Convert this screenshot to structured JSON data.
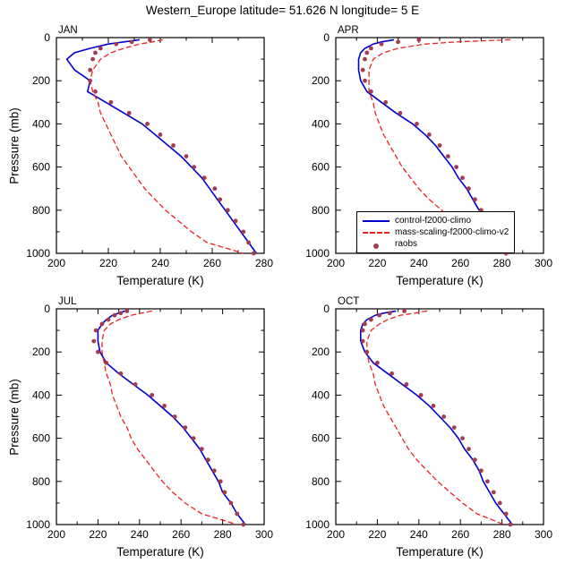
{
  "title": "Western_Europe  latitude= 51.626 N longitude= 5 E",
  "legend": {
    "entries": [
      {
        "label": "control-f2000-climo",
        "style": "solid",
        "color": "#0000cd"
      },
      {
        "label": "mass-scaling-f2000-climo-v2",
        "style": "dashed",
        "color": "#ee2020"
      },
      {
        "label": "raobs",
        "style": "dot",
        "color": "#a63a50"
      }
    ]
  },
  "chart_data": [
    {
      "type": "line",
      "panel_label": "JAN",
      "xlabel": "Temperature (K)",
      "ylabel": "Pressure (mb)",
      "xlim": [
        200,
        280
      ],
      "xticks": [
        200,
        220,
        240,
        260,
        280
      ],
      "ylim": [
        0,
        1000
      ],
      "yticks": [
        0,
        200,
        400,
        600,
        800,
        1000
      ],
      "y_axis": "pressure, inverted (0 mb at top)",
      "pressure_levels": [
        10,
        20,
        30,
        50,
        70,
        100,
        150,
        200,
        250,
        300,
        350,
        400,
        450,
        500,
        550,
        600,
        650,
        700,
        750,
        800,
        850,
        900,
        950,
        1000
      ],
      "series": [
        {
          "name": "control-f2000-climo",
          "values": [
            232,
            226,
            220,
            213,
            207,
            204,
            207,
            213,
            212,
            219,
            226,
            233,
            238,
            243,
            248,
            252,
            256,
            259,
            262,
            265,
            268,
            271,
            274,
            277
          ]
        },
        {
          "name": "mass-scaling-f2000-climo-v2",
          "values": [
            241,
            237,
            232,
            226,
            221,
            217,
            214,
            213,
            214,
            216,
            217,
            219,
            221,
            223,
            225,
            228,
            231,
            234,
            238,
            242,
            247,
            252,
            258,
            272
          ]
        },
        {
          "name": "raobs",
          "values": [
            236,
            229,
            223,
            217,
            215,
            214,
            213,
            213,
            215,
            221,
            228,
            235,
            240,
            245,
            250,
            253,
            257,
            261,
            263,
            266,
            269,
            272,
            274,
            276
          ]
        }
      ]
    },
    {
      "type": "line",
      "panel_label": "APR",
      "xlabel": "Temperature (K)",
      "ylabel": "Pressure (mb)",
      "xlim": [
        200,
        300
      ],
      "xticks": [
        200,
        220,
        240,
        260,
        280,
        300
      ],
      "ylim": [
        0,
        1000
      ],
      "yticks": [
        0,
        200,
        400,
        600,
        800,
        1000
      ],
      "y_axis": "pressure, inverted (0 mb at top)",
      "pressure_levels": [
        10,
        20,
        30,
        50,
        70,
        100,
        150,
        200,
        250,
        300,
        350,
        400,
        450,
        500,
        550,
        600,
        650,
        700,
        750,
        800,
        850,
        900,
        950,
        1000
      ],
      "series": [
        {
          "name": "control-f2000-climo",
          "values": [
            228,
            222,
            218,
            214,
            212,
            211,
            211,
            212,
            215,
            222,
            229,
            237,
            243,
            248,
            252,
            256,
            259,
            263,
            266,
            269,
            272,
            276,
            279,
            283
          ]
        },
        {
          "name": "mass-scaling-f2000-climo-v2",
          "values": [
            284,
            258,
            243,
            230,
            223,
            218,
            216,
            216,
            216,
            218,
            219,
            221,
            223,
            226,
            229,
            232,
            236,
            240,
            245,
            251,
            257,
            263,
            269,
            280
          ]
        },
        {
          "name": "raobs",
          "values": [
            240,
            230,
            222,
            217,
            215,
            214,
            213,
            214,
            217,
            224,
            231,
            239,
            245,
            250,
            254,
            258,
            261,
            264,
            267,
            270,
            273,
            277,
            280,
            282
          ]
        }
      ]
    },
    {
      "type": "line",
      "panel_label": "JUL",
      "xlabel": "Temperature (K)",
      "ylabel": "Pressure (mb)",
      "xlim": [
        200,
        300
      ],
      "xticks": [
        200,
        220,
        240,
        260,
        280,
        300
      ],
      "ylim": [
        0,
        1000
      ],
      "yticks": [
        0,
        200,
        400,
        600,
        800,
        1000
      ],
      "y_axis": "pressure, inverted (0 mb at top)",
      "pressure_levels": [
        10,
        20,
        30,
        50,
        70,
        100,
        150,
        200,
        250,
        300,
        350,
        400,
        450,
        500,
        550,
        600,
        650,
        700,
        750,
        800,
        850,
        900,
        950,
        1000
      ],
      "series": [
        {
          "name": "control-f2000-climo",
          "values": [
            233,
            230,
            227,
            224,
            222,
            220,
            220,
            221,
            224,
            230,
            237,
            244,
            250,
            256,
            261,
            265,
            269,
            272,
            275,
            278,
            280,
            284,
            287,
            291
          ]
        },
        {
          "name": "mass-scaling-f2000-climo-v2",
          "values": [
            246,
            241,
            236,
            230,
            226,
            223,
            222,
            222,
            223,
            224,
            226,
            227,
            229,
            231,
            234,
            236,
            239,
            243,
            247,
            251,
            256,
            262,
            270,
            287
          ]
        },
        {
          "name": "raobs",
          "values": [
            234,
            231,
            228,
            225,
            222,
            219,
            218,
            220,
            224,
            231,
            238,
            246,
            252,
            257,
            262,
            266,
            270,
            273,
            276,
            279,
            281,
            284,
            287,
            290
          ]
        }
      ]
    },
    {
      "type": "line",
      "panel_label": "OCT",
      "xlabel": "Temperature (K)",
      "ylabel": "Pressure (mb)",
      "xlim": [
        200,
        300
      ],
      "xticks": [
        200,
        220,
        240,
        260,
        280,
        300
      ],
      "ylim": [
        0,
        1000
      ],
      "yticks": [
        0,
        200,
        400,
        600,
        800,
        1000
      ],
      "y_axis": "pressure, inverted (0 mb at top)",
      "pressure_levels": [
        10,
        20,
        30,
        50,
        70,
        100,
        150,
        200,
        250,
        300,
        350,
        400,
        450,
        500,
        550,
        600,
        650,
        700,
        750,
        800,
        850,
        900,
        950,
        1000
      ],
      "series": [
        {
          "name": "control-f2000-climo",
          "values": [
            229,
            223,
            219,
            215,
            213,
            212,
            212,
            214,
            218,
            225,
            232,
            239,
            245,
            250,
            255,
            259,
            262,
            266,
            269,
            271,
            274,
            277,
            281,
            285
          ]
        },
        {
          "name": "mass-scaling-f2000-climo-v2",
          "values": [
            244,
            238,
            231,
            225,
            221,
            217,
            215,
            215,
            216,
            218,
            219,
            221,
            223,
            226,
            229,
            232,
            235,
            239,
            244,
            249,
            255,
            261,
            268,
            281
          ]
        },
        {
          "name": "raobs",
          "values": [
            233,
            226,
            221,
            217,
            214,
            213,
            213,
            215,
            220,
            227,
            234,
            241,
            247,
            252,
            257,
            261,
            264,
            267,
            270,
            273,
            276,
            279,
            282,
            284
          ]
        }
      ]
    }
  ]
}
